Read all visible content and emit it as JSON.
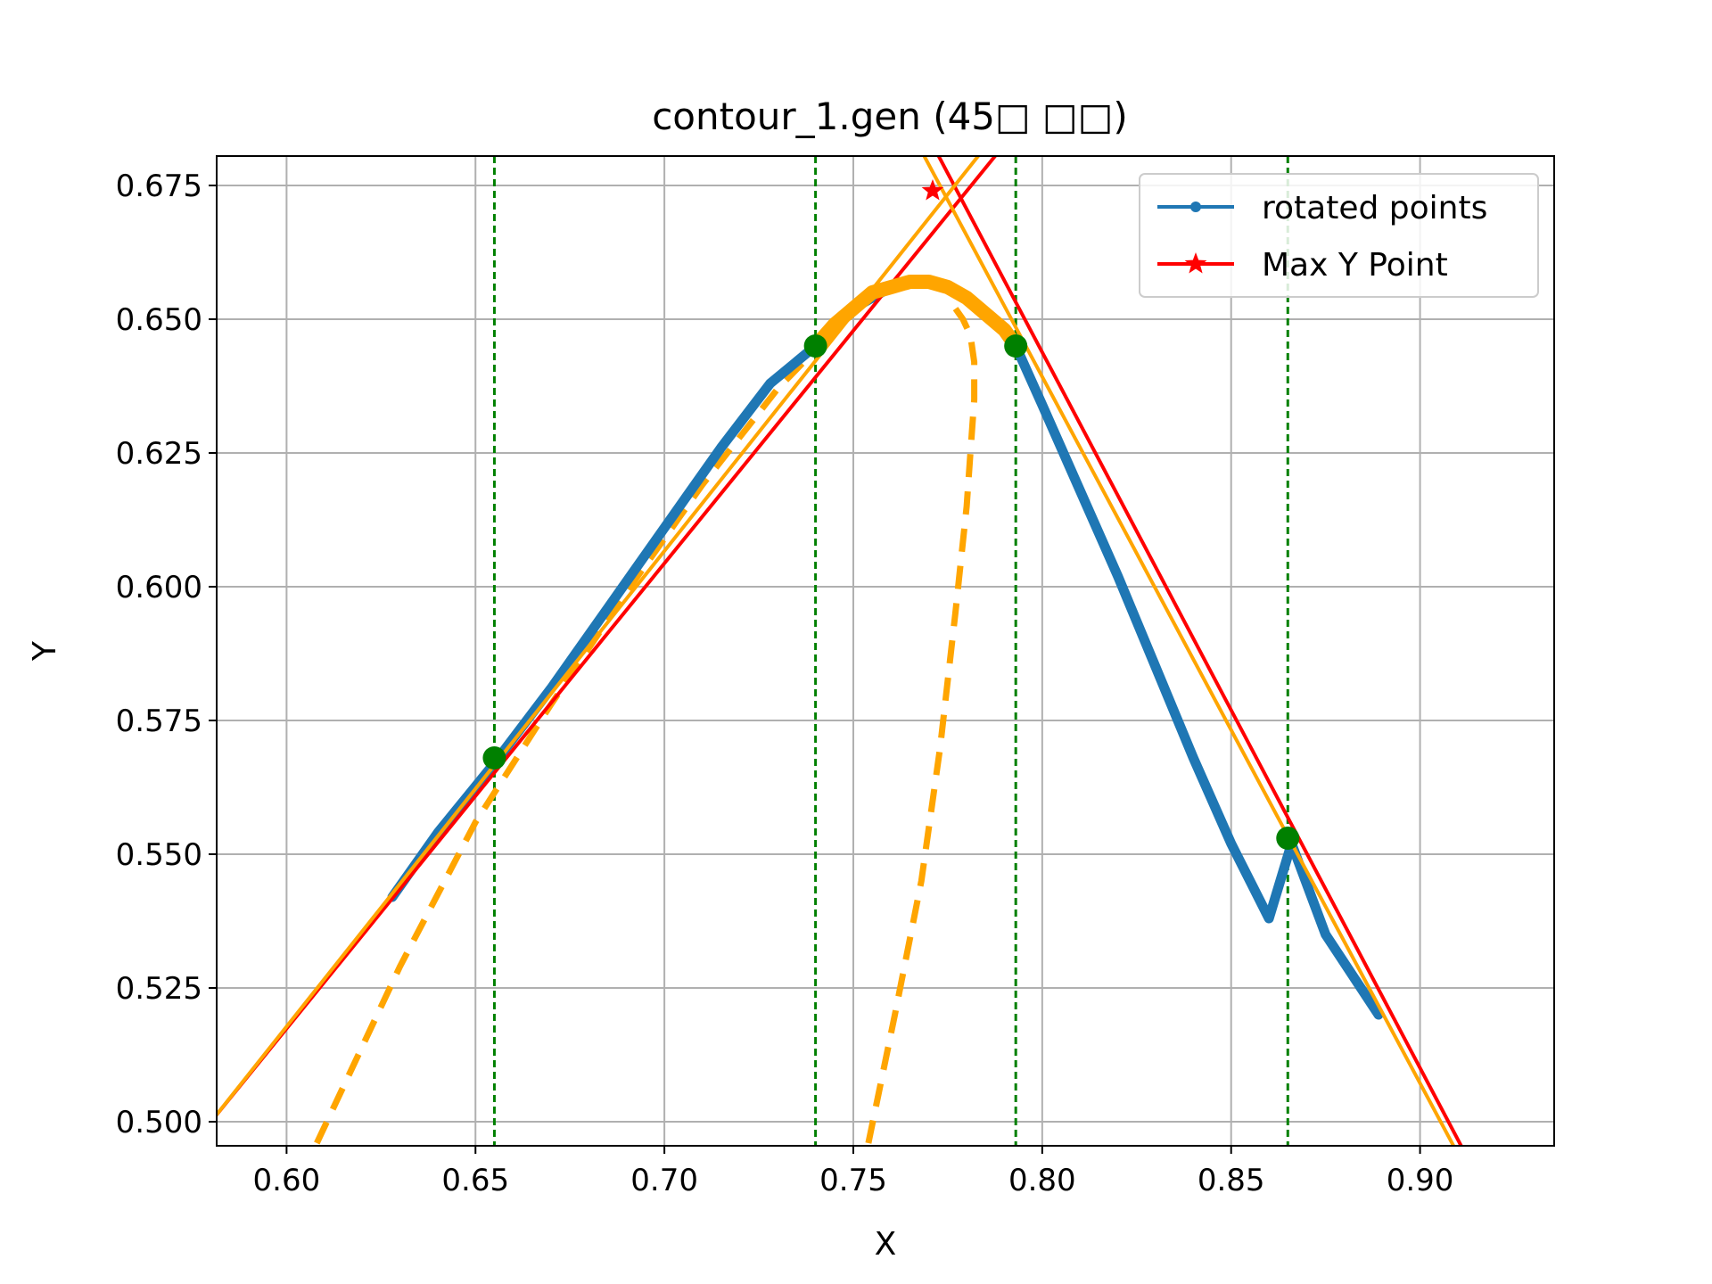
{
  "chart_data": {
    "type": "line",
    "title": "contour_1.gen (45□ □□)",
    "xlabel": "X",
    "ylabel": "Y",
    "xlim": [
      0.5815,
      0.9355
    ],
    "ylim": [
      0.4955,
      0.6805
    ],
    "grid": true,
    "legend_position": "upper-right",
    "x_ticks": [
      {
        "value": 0.6,
        "label": "0.60"
      },
      {
        "value": 0.65,
        "label": "0.65"
      },
      {
        "value": 0.7,
        "label": "0.70"
      },
      {
        "value": 0.75,
        "label": "0.75"
      },
      {
        "value": 0.8,
        "label": "0.80"
      },
      {
        "value": 0.85,
        "label": "0.85"
      },
      {
        "value": 0.9,
        "label": "0.90"
      }
    ],
    "y_ticks": [
      {
        "value": 0.5,
        "label": "0.500"
      },
      {
        "value": 0.525,
        "label": "0.525"
      },
      {
        "value": 0.55,
        "label": "0.550"
      },
      {
        "value": 0.575,
        "label": "0.575"
      },
      {
        "value": 0.6,
        "label": "0.600"
      },
      {
        "value": 0.625,
        "label": "0.625"
      },
      {
        "value": 0.65,
        "label": "0.650"
      },
      {
        "value": 0.675,
        "label": "0.675"
      }
    ],
    "colors": {
      "blue": "#1f77b4",
      "red": "#ff0000",
      "orange": "#ffa500",
      "green": "#008000",
      "grid": "#b0b0b0"
    },
    "legend": [
      {
        "label": "rotated points",
        "color": "#1f77b4",
        "marker": "dot"
      },
      {
        "label": "Max Y Point",
        "color": "#ff0000",
        "marker": "star"
      }
    ],
    "series": [
      {
        "name": "rotated points",
        "role": "points",
        "color": "#1f77b4",
        "x": [
          0.628,
          0.64,
          0.655,
          0.67,
          0.685,
          0.7,
          0.715,
          0.728,
          0.74,
          0.745,
          0.75,
          0.755,
          0.76,
          0.765,
          0.77,
          0.775,
          0.78,
          0.785,
          0.79,
          0.793,
          0.8,
          0.81,
          0.82,
          0.83,
          0.84,
          0.85,
          0.86,
          0.866,
          0.875,
          0.889
        ],
        "y": [
          0.542,
          0.554,
          0.567,
          0.581,
          0.596,
          0.611,
          0.626,
          0.638,
          0.645,
          0.649,
          0.652,
          0.654,
          0.656,
          0.657,
          0.657,
          0.656,
          0.654,
          0.651,
          0.648,
          0.645,
          0.634,
          0.618,
          0.602,
          0.585,
          0.568,
          0.552,
          0.538,
          0.552,
          0.535,
          0.52
        ]
      },
      {
        "name": "",
        "role": "arc",
        "color": "#ffa500",
        "x": [
          0.74,
          0.745,
          0.75,
          0.755,
          0.76,
          0.765,
          0.77,
          0.775,
          0.78,
          0.785,
          0.79,
          0.793
        ],
        "y": [
          0.645,
          0.649,
          0.652,
          0.655,
          0.656,
          0.657,
          0.657,
          0.656,
          0.654,
          0.651,
          0.648,
          0.645
        ]
      },
      {
        "name": "",
        "role": "tangent-line",
        "color": "#ff0000",
        "x": [
          0.58,
          0.795
        ],
        "y": [
          0.5,
          0.687
        ]
      },
      {
        "name": "",
        "role": "tangent-line",
        "color": "#ff0000",
        "x": [
          0.758,
          0.912
        ],
        "y": [
          0.7,
          0.494
        ]
      },
      {
        "name": "",
        "role": "tangent-line",
        "color": "#ffa500",
        "x": [
          0.58,
          0.805
        ],
        "y": [
          0.5,
          0.7
        ]
      },
      {
        "name": "",
        "role": "tangent-line",
        "color": "#ffa500",
        "x": [
          0.754,
          0.91
        ],
        "y": [
          0.7,
          0.494
        ]
      },
      {
        "name": "",
        "role": "dashed-curve",
        "color": "#ffa500",
        "x": [
          0.608,
          0.63,
          0.65,
          0.67,
          0.69,
          0.71,
          0.73,
          0.741
        ],
        "y": [
          0.496,
          0.529,
          0.556,
          0.578,
          0.599,
          0.619,
          0.637,
          0.645
        ]
      },
      {
        "name": "",
        "role": "dashed-curve",
        "color": "#ffa500",
        "x": [
          0.754,
          0.761,
          0.768,
          0.773,
          0.777,
          0.78,
          0.781,
          0.782,
          0.782,
          0.781,
          0.779,
          0.776
        ],
        "y": [
          0.496,
          0.52,
          0.545,
          0.57,
          0.595,
          0.615,
          0.625,
          0.635,
          0.642,
          0.647,
          0.65,
          0.653
        ]
      }
    ],
    "markers": {
      "max_y_point": {
        "x": 0.771,
        "y": 0.674,
        "color": "#ff0000",
        "shape": "star"
      },
      "green_points": [
        {
          "x": 0.655,
          "y": 0.568
        },
        {
          "x": 0.74,
          "y": 0.645
        },
        {
          "x": 0.793,
          "y": 0.645
        },
        {
          "x": 0.865,
          "y": 0.553
        }
      ]
    },
    "vertical_lines": [
      {
        "x": 0.655,
        "color": "#008000",
        "style": "dashed"
      },
      {
        "x": 0.74,
        "color": "#008000",
        "style": "dashed"
      },
      {
        "x": 0.793,
        "color": "#008000",
        "style": "dashed"
      },
      {
        "x": 0.865,
        "color": "#008000",
        "style": "dashed"
      }
    ]
  }
}
